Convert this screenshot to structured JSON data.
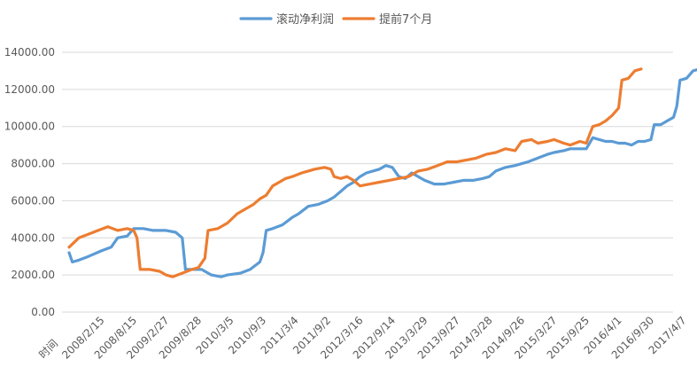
{
  "chart_data": {
    "type": "line",
    "title": "",
    "xlabel": "时间",
    "ylabel": "",
    "ylim": [
      0,
      14000
    ],
    "yticks": [
      0,
      2000,
      4000,
      6000,
      8000,
      10000,
      12000,
      14000
    ],
    "ytick_labels": [
      "0.00",
      "2000.00",
      "4000.00",
      "6000.00",
      "8000.00",
      "10000.00",
      "12000.00",
      "14000.00"
    ],
    "xtick_labels": [
      "2008/2/15",
      "2008/8/15",
      "2009/2/27",
      "2009/8/28",
      "2010/3/5",
      "2010/9/3",
      "2011/3/4",
      "2011/9/2",
      "2012/3/16",
      "2012/9/14",
      "2013/3/29",
      "2013/9/27",
      "2014/3/28",
      "2014/9/26",
      "2015/3/27",
      "2015/9/25",
      "2016/4/1",
      "2016/9/30",
      "2017/4/7"
    ],
    "grid": true,
    "legend_position": "top",
    "series": [
      {
        "name": "滚动净利润",
        "color": "#5b9bd5",
        "points": [
          [
            0.0,
            3200
          ],
          [
            0.1,
            2700
          ],
          [
            0.3,
            2800
          ],
          [
            0.6,
            3000
          ],
          [
            1.0,
            3300
          ],
          [
            1.3,
            3500
          ],
          [
            1.5,
            4000
          ],
          [
            1.8,
            4100
          ],
          [
            2.0,
            4500
          ],
          [
            2.3,
            4500
          ],
          [
            2.6,
            4400
          ],
          [
            3.0,
            4400
          ],
          [
            3.3,
            4300
          ],
          [
            3.5,
            4000
          ],
          [
            3.6,
            2300
          ],
          [
            3.9,
            2300
          ],
          [
            4.1,
            2300
          ],
          [
            4.4,
            2000
          ],
          [
            4.7,
            1900
          ],
          [
            4.9,
            2000
          ],
          [
            5.3,
            2100
          ],
          [
            5.6,
            2300
          ],
          [
            5.9,
            2700
          ],
          [
            6.0,
            3200
          ],
          [
            6.1,
            4400
          ],
          [
            6.3,
            4500
          ],
          [
            6.6,
            4700
          ],
          [
            6.9,
            5100
          ],
          [
            7.1,
            5300
          ],
          [
            7.4,
            5700
          ],
          [
            7.7,
            5800
          ],
          [
            8.0,
            6000
          ],
          [
            8.2,
            6200
          ],
          [
            8.4,
            6500
          ],
          [
            8.6,
            6800
          ],
          [
            8.8,
            7000
          ],
          [
            9.0,
            7300
          ],
          [
            9.2,
            7500
          ],
          [
            9.4,
            7600
          ],
          [
            9.6,
            7700
          ],
          [
            9.8,
            7900
          ],
          [
            10.0,
            7800
          ],
          [
            10.2,
            7300
          ],
          [
            10.4,
            7200
          ],
          [
            10.6,
            7500
          ],
          [
            10.8,
            7300
          ],
          [
            11.0,
            7100
          ],
          [
            11.3,
            6900
          ],
          [
            11.6,
            6900
          ],
          [
            11.9,
            7000
          ],
          [
            12.2,
            7100
          ],
          [
            12.5,
            7100
          ],
          [
            12.8,
            7200
          ],
          [
            13.0,
            7300
          ],
          [
            13.2,
            7600
          ],
          [
            13.5,
            7800
          ],
          [
            13.8,
            7900
          ],
          [
            14.0,
            8000
          ],
          [
            14.2,
            8100
          ],
          [
            14.5,
            8300
          ],
          [
            14.8,
            8500
          ],
          [
            15.0,
            8600
          ],
          [
            15.3,
            8700
          ],
          [
            15.5,
            8800
          ],
          [
            15.8,
            8800
          ],
          [
            16.0,
            8800
          ],
          [
            16.2,
            9400
          ],
          [
            16.4,
            9300
          ],
          [
            16.6,
            9200
          ],
          [
            16.8,
            9200
          ],
          [
            17.0,
            9100
          ],
          [
            17.2,
            9100
          ],
          [
            17.4,
            9000
          ],
          [
            17.6,
            9200
          ],
          [
            17.8,
            9200
          ],
          [
            18.0,
            9300
          ],
          [
            18.1,
            10100
          ],
          [
            18.3,
            10100
          ],
          [
            18.5,
            10300
          ],
          [
            18.7,
            10500
          ],
          [
            18.8,
            11100
          ],
          [
            18.9,
            12500
          ],
          [
            19.1,
            12600
          ],
          [
            19.3,
            13000
          ],
          [
            19.5,
            13100
          ]
        ]
      },
      {
        "name": "提前7个月",
        "color": "#ed7d31",
        "points": [
          [
            0.0,
            3500
          ],
          [
            0.3,
            4000
          ],
          [
            0.6,
            4200
          ],
          [
            0.9,
            4400
          ],
          [
            1.2,
            4600
          ],
          [
            1.5,
            4400
          ],
          [
            1.8,
            4500
          ],
          [
            2.0,
            4400
          ],
          [
            2.1,
            4000
          ],
          [
            2.2,
            2300
          ],
          [
            2.5,
            2300
          ],
          [
            2.8,
            2200
          ],
          [
            3.0,
            2000
          ],
          [
            3.2,
            1900
          ],
          [
            3.5,
            2100
          ],
          [
            3.8,
            2300
          ],
          [
            4.0,
            2400
          ],
          [
            4.2,
            2900
          ],
          [
            4.3,
            4400
          ],
          [
            4.6,
            4500
          ],
          [
            4.9,
            4800
          ],
          [
            5.2,
            5300
          ],
          [
            5.4,
            5500
          ],
          [
            5.7,
            5800
          ],
          [
            5.9,
            6100
          ],
          [
            6.1,
            6300
          ],
          [
            6.3,
            6800
          ],
          [
            6.5,
            7000
          ],
          [
            6.7,
            7200
          ],
          [
            6.9,
            7300
          ],
          [
            7.2,
            7500
          ],
          [
            7.4,
            7600
          ],
          [
            7.6,
            7700
          ],
          [
            7.9,
            7800
          ],
          [
            8.1,
            7700
          ],
          [
            8.2,
            7300
          ],
          [
            8.4,
            7200
          ],
          [
            8.6,
            7300
          ],
          [
            8.8,
            7100
          ],
          [
            9.0,
            6800
          ],
          [
            9.3,
            6900
          ],
          [
            9.6,
            7000
          ],
          [
            9.9,
            7100
          ],
          [
            10.2,
            7200
          ],
          [
            10.5,
            7300
          ],
          [
            10.8,
            7600
          ],
          [
            11.1,
            7700
          ],
          [
            11.4,
            7900
          ],
          [
            11.7,
            8100
          ],
          [
            12.0,
            8100
          ],
          [
            12.3,
            8200
          ],
          [
            12.6,
            8300
          ],
          [
            12.9,
            8500
          ],
          [
            13.2,
            8600
          ],
          [
            13.5,
            8800
          ],
          [
            13.8,
            8700
          ],
          [
            14.0,
            9200
          ],
          [
            14.3,
            9300
          ],
          [
            14.5,
            9100
          ],
          [
            14.8,
            9200
          ],
          [
            15.0,
            9300
          ],
          [
            15.3,
            9100
          ],
          [
            15.5,
            9000
          ],
          [
            15.8,
            9200
          ],
          [
            16.0,
            9100
          ],
          [
            16.2,
            10000
          ],
          [
            16.4,
            10100
          ],
          [
            16.6,
            10300
          ],
          [
            16.8,
            10600
          ],
          [
            17.0,
            11000
          ],
          [
            17.1,
            12500
          ],
          [
            17.3,
            12600
          ],
          [
            17.5,
            13000
          ],
          [
            17.7,
            13100
          ]
        ]
      }
    ]
  }
}
